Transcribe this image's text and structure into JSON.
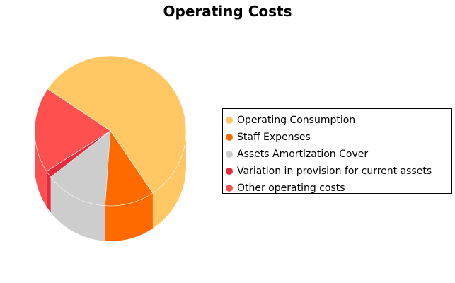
{
  "chart_data": {
    "type": "pie",
    "title": "Operating Costs",
    "legend_position": "right",
    "slices": [
      {
        "label": "Operating Consumption",
        "value": 56.1,
        "color": "#FFC864"
      },
      {
        "label": "Staff Expenses",
        "value": 10.6,
        "color": "#FF6A00"
      },
      {
        "label": "Assets Amortization Cover",
        "value": 13.3,
        "color": "#CDCDCD"
      },
      {
        "label": "Variation in provision for current assets",
        "value": 1.5,
        "color": "#E8283C"
      },
      {
        "label": "Other operating costs",
        "value": 18.5,
        "color": "#FF5050"
      }
    ]
  }
}
